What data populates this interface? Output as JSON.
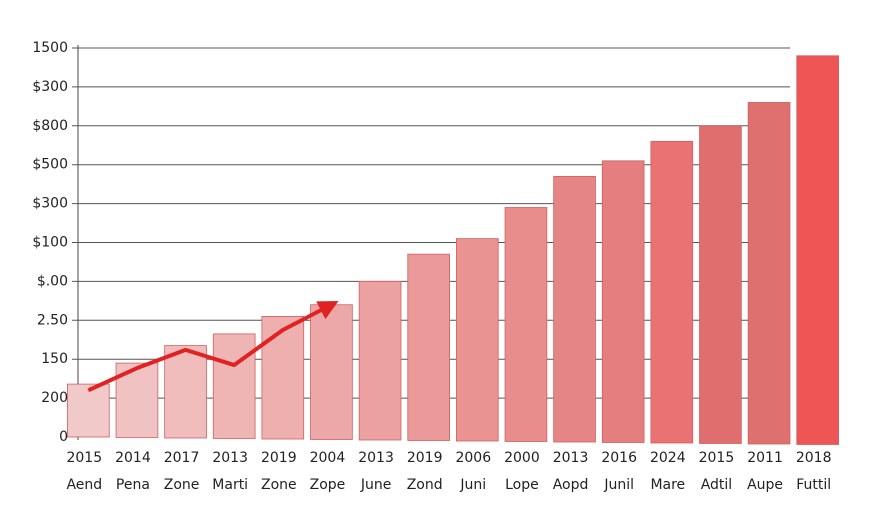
{
  "chart_data": {
    "type": "bar",
    "categories": [
      "2015",
      "2014",
      "2017",
      "2013",
      "2019",
      "2004",
      "2013",
      "2019",
      "2006",
      "2000",
      "2013",
      "2016",
      "2024",
      "2015",
      "2011",
      "2018"
    ],
    "category_sublabels": [
      "Aend",
      "Pena",
      "Zone",
      "Marti",
      "Zone",
      "Zope",
      "June",
      "Zond",
      "Juni",
      "Lope",
      "Aopd",
      "Junil",
      "Mare",
      "Adtil",
      "Aupe",
      "Futtil"
    ],
    "values": [
      1.36,
      1.9,
      2.35,
      2.65,
      3.1,
      3.4,
      4.0,
      4.7,
      5.1,
      5.9,
      6.7,
      7.1,
      7.6,
      8.0,
      8.6,
      9.8
    ],
    "colors": [
      "#f2c9c9",
      "#f1c2c2",
      "#f0bcbc",
      "#efb5b5",
      "#eeafaf",
      "#eca8a8",
      "#eba1a1",
      "#ea9a9a",
      "#e99393",
      "#e88c8c",
      "#e68585",
      "#e57e7e",
      "#ea7272",
      "#e06e6e",
      "#de7070",
      "#ee5555"
    ],
    "trend": {
      "color": "#e02222",
      "values": [
        1.2,
        1.77,
        2.24,
        1.85,
        2.75,
        3.4,
        null,
        null,
        null,
        null,
        null,
        null,
        null,
        null,
        null,
        null
      ]
    },
    "ylim": [
      0,
      10
    ],
    "yticks": [
      {
        "value": 0,
        "label": "0"
      },
      {
        "value": 1,
        "label": "200"
      },
      {
        "value": 2,
        "label": "150"
      },
      {
        "value": 3,
        "label": "2.50"
      },
      {
        "value": 4,
        "label": "$.00"
      },
      {
        "value": 5,
        "label": "$100"
      },
      {
        "value": 6,
        "label": "$300"
      },
      {
        "value": 7,
        "label": "$500"
      },
      {
        "value": 8,
        "label": "$800"
      },
      {
        "value": 9,
        "label": "$300"
      },
      {
        "value": 10,
        "label": "1500"
      }
    ],
    "grid": true
  }
}
